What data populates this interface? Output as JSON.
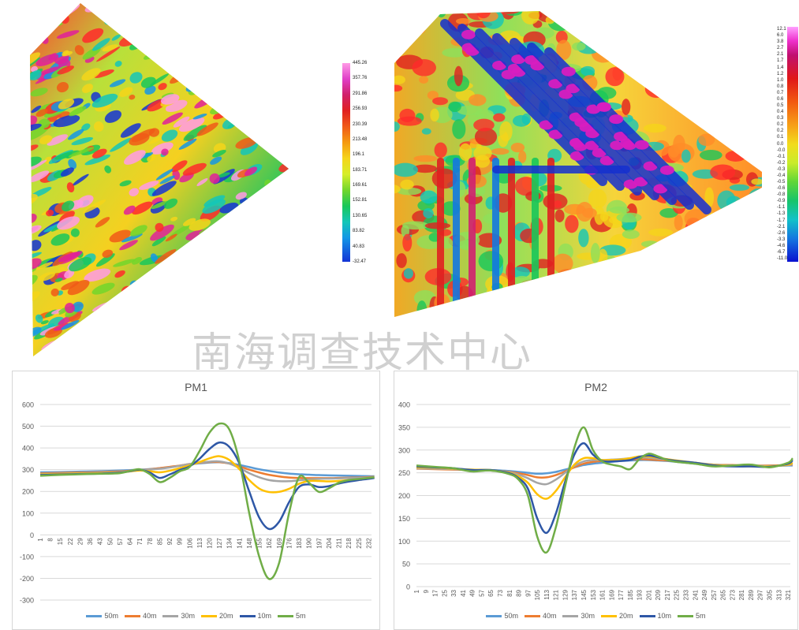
{
  "watermark": "南海调查技术中心",
  "colors": [
    "#5b9bd5",
    "#ed7d31",
    "#a5a5a5",
    "#ffc000",
    "#2e57a6",
    "#70ad47"
  ],
  "map1": {
    "scale_labels": [
      "445.26",
      "357.76",
      "291.86",
      "256.93",
      "230.39",
      "213.48",
      "196.1",
      "183.71",
      "169.61",
      "152.81",
      "130.65",
      "83.82",
      "40.83",
      "-32.47"
    ]
  },
  "map2": {
    "scale_labels": [
      "12.1",
      "6.0",
      "3.8",
      "2.7",
      "2.1",
      "1.7",
      "1.4",
      "1.2",
      "1.0",
      "0.8",
      "0.7",
      "0.6",
      "0.5",
      "0.4",
      "0.3",
      "0.2",
      "0.2",
      "0.1",
      "0.0",
      "-0.0",
      "-0.1",
      "-0.2",
      "-0.3",
      "-0.4",
      "-0.5",
      "-0.6",
      "-0.8",
      "-0.9",
      "-1.1",
      "-1.3",
      "-1.7",
      "-2.1",
      "-2.6",
      "-3.3",
      "-4.6",
      "-6.7",
      "-11.0"
    ]
  },
  "chart_data": [
    {
      "type": "line",
      "title": "PM1",
      "ylim": [
        -300,
        600
      ],
      "yticks": [
        -300,
        -200,
        -100,
        0,
        100,
        200,
        300,
        400,
        500,
        600
      ],
      "x_labels": [
        "1",
        "8",
        "15",
        "22",
        "29",
        "36",
        "43",
        "50",
        "57",
        "64",
        "71",
        "78",
        "85",
        "92",
        "99",
        "106",
        "113",
        "120",
        "127",
        "134",
        "141",
        "148",
        "155",
        "162",
        "169",
        "176",
        "183",
        "190",
        "197",
        "204",
        "211",
        "218",
        "225",
        "232"
      ],
      "x": [
        1,
        15,
        29,
        43,
        57,
        64,
        71,
        78,
        85,
        92,
        99,
        106,
        113,
        120,
        127,
        134,
        141,
        148,
        155,
        162,
        169,
        176,
        183,
        190,
        197,
        204,
        211,
        218,
        225,
        232,
        236
      ],
      "series": [
        {
          "name": "50m",
          "values": [
            288,
            289,
            291,
            293,
            296,
            298,
            300,
            303,
            307,
            312,
            318,
            324,
            329,
            333,
            334,
            330,
            322,
            312,
            302,
            294,
            287,
            282,
            279,
            277,
            275,
            274,
            273,
            272,
            271,
            270,
            270
          ]
        },
        {
          "name": "40m",
          "values": [
            283,
            285,
            287,
            289,
            292,
            295,
            298,
            302,
            307,
            313,
            319,
            326,
            331,
            335,
            335,
            328,
            315,
            300,
            287,
            276,
            269,
            264,
            262,
            261,
            261,
            261,
            262,
            263,
            264,
            266,
            267
          ]
        },
        {
          "name": "30m",
          "values": [
            280,
            282,
            284,
            286,
            289,
            293,
            297,
            301,
            304,
            310,
            318,
            326,
            332,
            337,
            338,
            328,
            308,
            284,
            265,
            252,
            247,
            247,
            251,
            255,
            258,
            259,
            260,
            261,
            262,
            264,
            265
          ]
        },
        {
          "name": "20m",
          "values": [
            278,
            280,
            282,
            284,
            287,
            292,
            296,
            293,
            288,
            295,
            307,
            320,
            335,
            352,
            362,
            345,
            303,
            252,
            213,
            197,
            198,
            212,
            235,
            248,
            248,
            246,
            248,
            252,
            256,
            260,
            263
          ]
        },
        {
          "name": "10m",
          "values": [
            275,
            278,
            280,
            282,
            286,
            293,
            300,
            287,
            262,
            278,
            298,
            315,
            350,
            395,
            425,
            405,
            330,
            200,
            80,
            27,
            60,
            150,
            220,
            232,
            220,
            224,
            236,
            245,
            252,
            258,
            262
          ]
        },
        {
          "name": "5m",
          "values": [
            272,
            276,
            279,
            281,
            284,
            294,
            302,
            280,
            243,
            262,
            292,
            312,
            385,
            470,
            512,
            485,
            340,
            100,
            -100,
            -203,
            -130,
            100,
            265,
            240,
            198,
            214,
            240,
            252,
            257,
            262,
            265
          ]
        }
      ]
    },
    {
      "type": "line",
      "title": "PM2",
      "ylim": [
        0,
        400
      ],
      "yticks": [
        0,
        50,
        100,
        150,
        200,
        250,
        300,
        350,
        400
      ],
      "x_labels": [
        "1",
        "9",
        "17",
        "25",
        "33",
        "41",
        "49",
        "57",
        "65",
        "73",
        "81",
        "89",
        "97",
        "105",
        "113",
        "121",
        "129",
        "137",
        "145",
        "153",
        "161",
        "169",
        "177",
        "185",
        "193",
        "201",
        "209",
        "217",
        "225",
        "233",
        "241",
        "249",
        "257",
        "265",
        "273",
        "281",
        "289",
        "297",
        "305",
        "313",
        "321"
      ],
      "x": [
        1,
        17,
        33,
        49,
        65,
        81,
        89,
        97,
        105,
        113,
        121,
        129,
        137,
        145,
        153,
        161,
        169,
        177,
        185,
        193,
        201,
        209,
        217,
        225,
        241,
        257,
        273,
        289,
        305,
        321,
        325
      ],
      "series": [
        {
          "name": "50m",
          "values": [
            260,
            259,
            258,
            257,
            256,
            254,
            252,
            250,
            248,
            249,
            252,
            257,
            262,
            267,
            270,
            272,
            274,
            276,
            277,
            278,
            278,
            277,
            276,
            274,
            270,
            267,
            266,
            265,
            265,
            266,
            266
          ]
        },
        {
          "name": "40m",
          "values": [
            259,
            258,
            257,
            256,
            255,
            252,
            249,
            245,
            240,
            240,
            245,
            253,
            262,
            270,
            274,
            276,
            277,
            278,
            279,
            280,
            279,
            278,
            277,
            275,
            271,
            268,
            267,
            266,
            266,
            267,
            268
          ]
        },
        {
          "name": "30m",
          "values": [
            260,
            259,
            258,
            256,
            255,
            251,
            246,
            238,
            228,
            225,
            235,
            250,
            265,
            275,
            278,
            278,
            279,
            280,
            282,
            284,
            283,
            281,
            279,
            276,
            272,
            268,
            266,
            265,
            265,
            267,
            269
          ]
        },
        {
          "name": "20m",
          "values": [
            262,
            261,
            259,
            257,
            256,
            250,
            242,
            228,
            203,
            193,
            210,
            240,
            268,
            282,
            282,
            278,
            278,
            279,
            282,
            286,
            286,
            283,
            280,
            277,
            272,
            267,
            265,
            264,
            264,
            268,
            272
          ]
        },
        {
          "name": "10m",
          "values": [
            264,
            262,
            260,
            256,
            256,
            249,
            238,
            215,
            150,
            118,
            160,
            230,
            290,
            315,
            290,
            276,
            275,
            276,
            278,
            285,
            288,
            284,
            279,
            276,
            272,
            266,
            264,
            264,
            263,
            270,
            278
          ]
        },
        {
          "name": "5m",
          "values": [
            266,
            263,
            260,
            253,
            255,
            247,
            235,
            200,
            110,
            75,
            130,
            220,
            305,
            350,
            300,
            275,
            268,
            264,
            258,
            280,
            292,
            286,
            278,
            274,
            270,
            264,
            266,
            268,
            262,
            272,
            282
          ]
        }
      ]
    }
  ]
}
